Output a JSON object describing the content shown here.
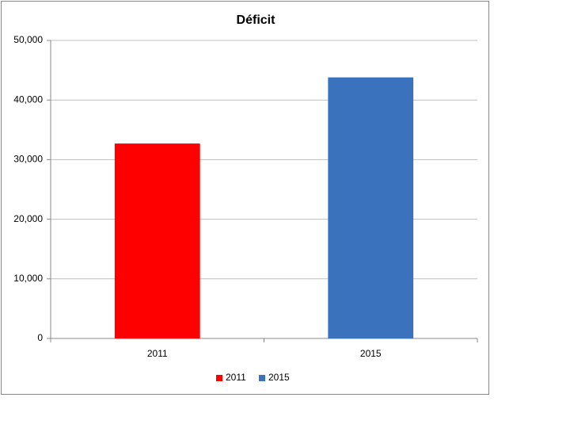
{
  "chart_data": {
    "type": "bar",
    "title": "Déficit",
    "categories": [
      "2011",
      "2015"
    ],
    "series": [
      {
        "name": "2011",
        "color": "#ff0000",
        "values": [
          32700,
          null
        ]
      },
      {
        "name": "2015",
        "color": "#3a72bd",
        "values": [
          null,
          43800
        ]
      }
    ],
    "ylim": [
      0,
      50000
    ],
    "yticks": [
      0,
      {
        "value": 10000,
        "label": "10,000"
      },
      {
        "value": 20000,
        "label": "20,000"
      },
      {
        "value": 30000,
        "label": "30,000"
      },
      {
        "value": 40000,
        "label": "40,000"
      },
      {
        "value": 50000,
        "label": "50,000"
      }
    ],
    "grid": true,
    "legend": "bottom"
  }
}
